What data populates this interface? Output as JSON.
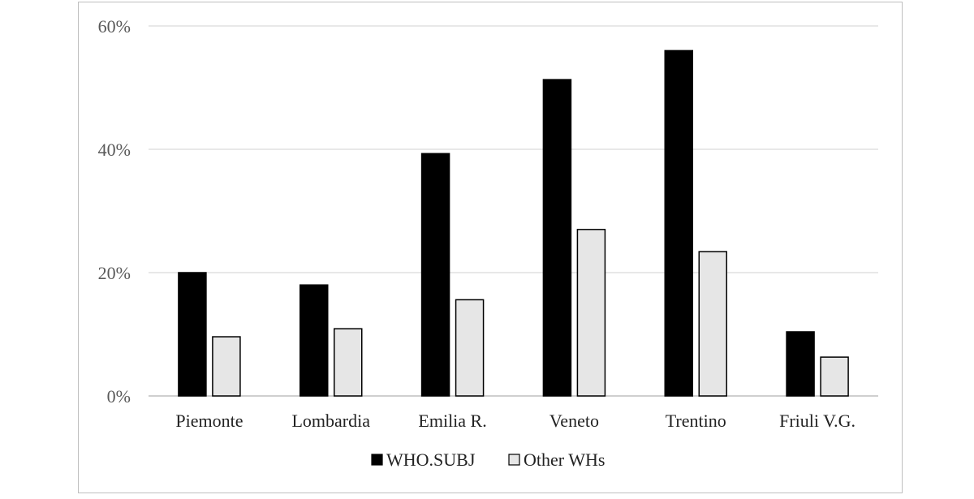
{
  "chart_data": {
    "type": "bar",
    "categories": [
      "Piemonte",
      "Lombardia",
      "Emilia R.",
      "Veneto",
      "Trentino",
      "Friuli V.G."
    ],
    "series": [
      {
        "name": "WHO.SUBJ",
        "values": [
          20,
          18,
          39.3,
          51.3,
          56,
          10.4
        ],
        "color": "#000000"
      },
      {
        "name": "Other WHs",
        "values": [
          9.6,
          10.9,
          15.6,
          27,
          23.4,
          6.3
        ],
        "color": "#e6e6e6"
      }
    ],
    "y_ticks": [
      "0%",
      "20%",
      "40%",
      "60%"
    ],
    "ylim": [
      0,
      60
    ],
    "grid": true,
    "legend_position": "bottom",
    "title": "",
    "xlabel": "",
    "ylabel": ""
  }
}
